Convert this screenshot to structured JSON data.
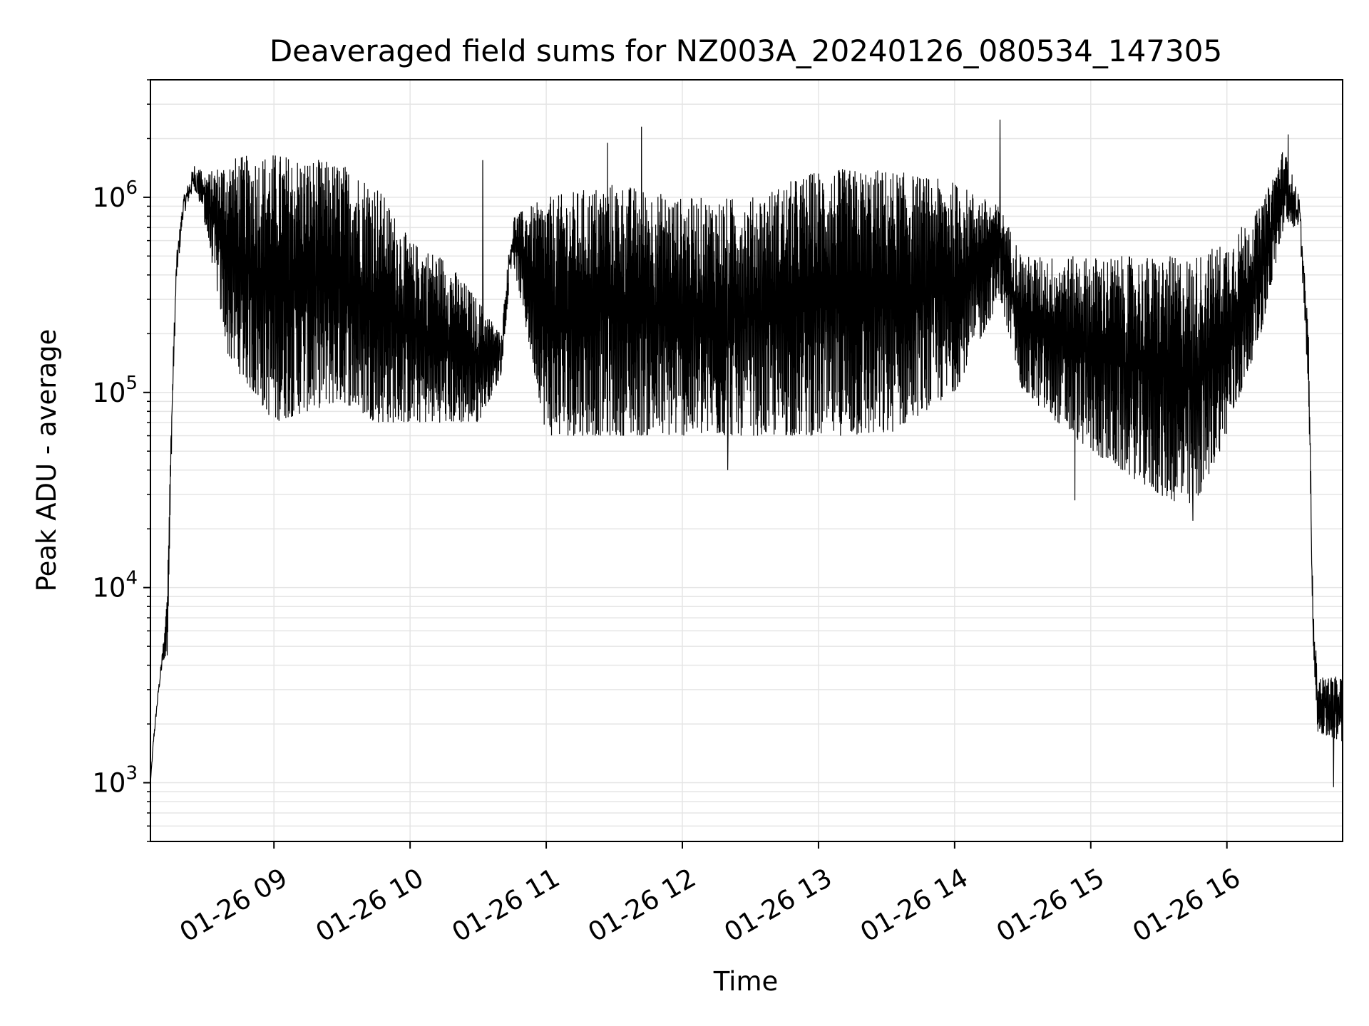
{
  "chart_data": {
    "type": "line",
    "title": "Deaveraged field sums for NZ003A_20240126_080534_147305",
    "xlabel": "Time",
    "ylabel": "Peak ADU - average",
    "yscale": "log",
    "ylim": [
      500,
      4000000
    ],
    "xlim": [
      "2024-01-26T08:05:34",
      "2024-01-26T16:51:00"
    ],
    "grid": true,
    "grid_minor": true,
    "line_color": "#000000",
    "grid_color": "#e5e5e5",
    "x_ticks": [
      {
        "time": "2024-01-26T09:00:00",
        "label": "01-26 09"
      },
      {
        "time": "2024-01-26T10:00:00",
        "label": "01-26 10"
      },
      {
        "time": "2024-01-26T11:00:00",
        "label": "01-26 11"
      },
      {
        "time": "2024-01-26T12:00:00",
        "label": "01-26 12"
      },
      {
        "time": "2024-01-26T13:00:00",
        "label": "01-26 13"
      },
      {
        "time": "2024-01-26T14:00:00",
        "label": "01-26 14"
      },
      {
        "time": "2024-01-26T15:00:00",
        "label": "01-26 15"
      },
      {
        "time": "2024-01-26T16:00:00",
        "label": "01-26 16"
      }
    ],
    "y_ticks": [
      {
        "value": 1000,
        "base": "10",
        "exp": "3"
      },
      {
        "value": 10000,
        "base": "10",
        "exp": "4"
      },
      {
        "value": 100000,
        "base": "10",
        "exp": "5"
      },
      {
        "value": 1000000,
        "base": "10",
        "exp": "6"
      }
    ],
    "series": [
      {
        "envelope": [
          {
            "t": "2024-01-26T08:05:34",
            "lo": 1000,
            "hi": 1000
          },
          {
            "t": "2024-01-26T08:07:00",
            "lo": 1600,
            "hi": 1800
          },
          {
            "t": "2024-01-26T08:09:00",
            "lo": 2800,
            "hi": 3000
          },
          {
            "t": "2024-01-26T08:11:00",
            "lo": 4000,
            "hi": 5000
          },
          {
            "t": "2024-01-26T08:13:00",
            "lo": 4500,
            "hi": 10500
          },
          {
            "t": "2024-01-26T08:15:00",
            "lo": 60000,
            "hi": 100000
          },
          {
            "t": "2024-01-26T08:17:00",
            "lo": 350000,
            "hi": 500000
          },
          {
            "t": "2024-01-26T08:20:00",
            "lo": 800000,
            "hi": 1000000
          },
          {
            "t": "2024-01-26T08:25:00",
            "lo": 1100000,
            "hi": 1500000
          },
          {
            "t": "2024-01-26T08:30:00",
            "lo": 700000,
            "hi": 1300000
          },
          {
            "t": "2024-01-26T08:40:00",
            "lo": 150000,
            "hi": 1600000
          },
          {
            "t": "2024-01-26T09:00:00",
            "lo": 70000,
            "hi": 1700000
          },
          {
            "t": "2024-01-26T09:15:00",
            "lo": 80000,
            "hi": 1600000
          },
          {
            "t": "2024-01-26T09:30:00",
            "lo": 90000,
            "hi": 1500000
          },
          {
            "t": "2024-01-26T09:45:00",
            "lo": 70000,
            "hi": 1200000
          },
          {
            "t": "2024-01-26T10:00:00",
            "lo": 70000,
            "hi": 600000
          },
          {
            "t": "2024-01-26T10:15:00",
            "lo": 70000,
            "hi": 500000
          },
          {
            "t": "2024-01-26T10:30:00",
            "lo": 70000,
            "hi": 300000
          },
          {
            "t": "2024-01-26T10:40:00",
            "lo": 120000,
            "hi": 200000
          },
          {
            "t": "2024-01-26T10:45:00",
            "lo": 500000,
            "hi": 800000
          },
          {
            "t": "2024-01-26T11:00:00",
            "lo": 60000,
            "hi": 1000000
          },
          {
            "t": "2024-01-26T11:30:00",
            "lo": 60000,
            "hi": 1200000
          },
          {
            "t": "2024-01-26T12:00:00",
            "lo": 60000,
            "hi": 1000000
          },
          {
            "t": "2024-01-26T12:30:00",
            "lo": 60000,
            "hi": 1000000
          },
          {
            "t": "2024-01-26T13:00:00",
            "lo": 60000,
            "hi": 1400000
          },
          {
            "t": "2024-01-26T13:30:00",
            "lo": 60000,
            "hi": 1400000
          },
          {
            "t": "2024-01-26T14:00:00",
            "lo": 100000,
            "hi": 1200000
          },
          {
            "t": "2024-01-26T14:20:00",
            "lo": 300000,
            "hi": 900000
          },
          {
            "t": "2024-01-26T14:30:00",
            "lo": 100000,
            "hi": 500000
          },
          {
            "t": "2024-01-26T15:00:00",
            "lo": 50000,
            "hi": 500000
          },
          {
            "t": "2024-01-26T15:30:00",
            "lo": 30000,
            "hi": 500000
          },
          {
            "t": "2024-01-26T15:45:00",
            "lo": 25000,
            "hi": 500000
          },
          {
            "t": "2024-01-26T16:00:00",
            "lo": 60000,
            "hi": 600000
          },
          {
            "t": "2024-01-26T16:15:00",
            "lo": 200000,
            "hi": 900000
          },
          {
            "t": "2024-01-26T16:25:00",
            "lo": 700000,
            "hi": 1800000
          },
          {
            "t": "2024-01-26T16:32:00",
            "lo": 700000,
            "hi": 1000000
          },
          {
            "t": "2024-01-26T16:36:00",
            "lo": 100000,
            "hi": 200000
          },
          {
            "t": "2024-01-26T16:38:00",
            "lo": 5000,
            "hi": 8000
          },
          {
            "t": "2024-01-26T16:40:00",
            "lo": 1800,
            "hi": 3500
          },
          {
            "t": "2024-01-26T16:51:00",
            "lo": 1600,
            "hi": 3500
          }
        ],
        "spikes": [
          {
            "t": "2024-01-26T11:42:00",
            "value": 2300000
          },
          {
            "t": "2024-01-26T14:20:00",
            "value": 2500000
          },
          {
            "t": "2024-01-26T16:27:00",
            "value": 2100000
          },
          {
            "t": "2024-01-26T11:27:00",
            "value": 1900000
          },
          {
            "t": "2024-01-26T10:32:00",
            "value": 1550000
          },
          {
            "t": "2024-01-26T12:20:00",
            "value": 40000
          },
          {
            "t": "2024-01-26T15:45:00",
            "value": 22000
          },
          {
            "t": "2024-01-26T14:53:00",
            "value": 28000
          },
          {
            "t": "2024-01-26T16:47:00",
            "value": 950
          }
        ]
      }
    ]
  }
}
